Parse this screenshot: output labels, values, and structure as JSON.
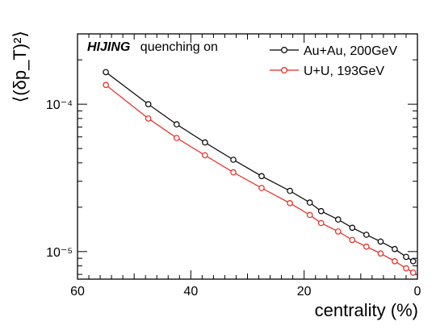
{
  "chart_data": {
    "type": "line",
    "title": "",
    "annotation": {
      "generator": "HIJING",
      "text": "quenching on"
    },
    "xlabel": "centrality (%)",
    "ylabel": "⟨(δp_T)²⟩",
    "xlim": [
      60,
      0
    ],
    "x_reversed": true,
    "ylim": [
      6.5e-06,
      0.0003
    ],
    "y_scale": "log",
    "x_ticks": [
      60,
      40,
      20,
      0
    ],
    "y_tick_labels": [
      "10⁻⁴",
      "10⁻⁵"
    ],
    "grid": false,
    "legend_position": "top-right",
    "x": [
      55,
      47.5,
      42.5,
      37.5,
      32.5,
      27.5,
      22.5,
      19,
      17,
      14,
      11.5,
      9,
      6.5,
      4,
      2,
      0.75
    ],
    "series": [
      {
        "name": "Au+Au, 200GeV",
        "color": "#000000",
        "marker": "open-circle",
        "values": [
          0.000165,
          0.0001,
          7.3e-05,
          5.5e-05,
          4.2e-05,
          3.25e-05,
          2.58e-05,
          2.15e-05,
          1.88e-05,
          1.65e-05,
          1.45e-05,
          1.3e-05,
          1.17e-05,
          1.04e-05,
          9.2e-06,
          8.6e-06
        ]
      },
      {
        "name": "U+U, 193GeV",
        "color": "#e8261e",
        "marker": "open-circle",
        "values": [
          0.000135,
          8e-05,
          5.9e-05,
          4.5e-05,
          3.45e-05,
          2.7e-05,
          2.13e-05,
          1.77e-05,
          1.56e-05,
          1.37e-05,
          1.2e-05,
          1.08e-05,
          9.7e-06,
          8.6e-06,
          7.7e-06,
          7.2e-06
        ]
      }
    ]
  }
}
